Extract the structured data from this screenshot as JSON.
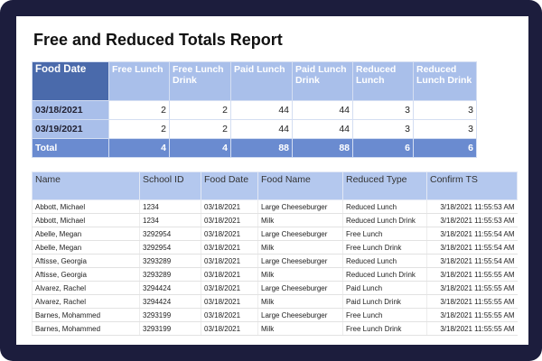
{
  "header": {
    "title": "Free and Reduced Totals Report"
  },
  "summary": {
    "columns": [
      "Food Date",
      "Free Lunch",
      "Free Lunch Drink",
      "Paid Lunch",
      "Paid Lunch Drink",
      "Reduced Lunch",
      "Reduced Lunch Drink"
    ],
    "rows": [
      [
        "03/18/2021",
        2,
        2,
        44,
        44,
        3,
        3
      ],
      [
        "03/19/2021",
        2,
        2,
        44,
        44,
        3,
        3
      ],
      [
        "Total",
        4,
        4,
        88,
        88,
        6,
        6
      ]
    ]
  },
  "detail": {
    "columns": [
      "Name",
      "School ID",
      "Food Date",
      "Food Name",
      "Reduced Type",
      "Confirm TS"
    ],
    "rows": [
      [
        "Abbott, Michael",
        "1234",
        "03/18/2021",
        "Large Cheeseburger",
        "Reduced Lunch",
        "3/18/2021 11:55:53 AM"
      ],
      [
        "Abbott, Michael",
        "1234",
        "03/18/2021",
        "Milk",
        "Reduced Lunch Drink",
        "3/18/2021 11:55:53 AM"
      ],
      [
        "Abelle, Megan",
        "3292954",
        "03/18/2021",
        "Large Cheeseburger",
        "Free Lunch",
        "3/18/2021 11:55:54 AM"
      ],
      [
        "Abelle, Megan",
        "3292954",
        "03/18/2021",
        "Milk",
        "Free Lunch Drink",
        "3/18/2021 11:55:54 AM"
      ],
      [
        "Aftisse, Georgia",
        "3293289",
        "03/18/2021",
        "Large Cheeseburger",
        "Reduced Lunch",
        "3/18/2021 11:55:54 AM"
      ],
      [
        "Aftisse, Georgia",
        "3293289",
        "03/18/2021",
        "Milk",
        "Reduced Lunch Drink",
        "3/18/2021 11:55:55 AM"
      ],
      [
        "Alvarez, Rachel",
        "3294424",
        "03/18/2021",
        "Large Cheeseburger",
        "Paid Lunch",
        "3/18/2021 11:55:55 AM"
      ],
      [
        "Alvarez, Rachel",
        "3294424",
        "03/18/2021",
        "Milk",
        "Paid Lunch Drink",
        "3/18/2021 11:55:55 AM"
      ],
      [
        "Barnes, Mohammed",
        "3293199",
        "03/18/2021",
        "Large Cheeseburger",
        "Free Lunch",
        "3/18/2021 11:55:55 AM"
      ],
      [
        "Barnes, Mohammed",
        "3293199",
        "03/18/2021",
        "Milk",
        "Free Lunch Drink",
        "3/18/2021 11:55:55 AM"
      ]
    ]
  }
}
